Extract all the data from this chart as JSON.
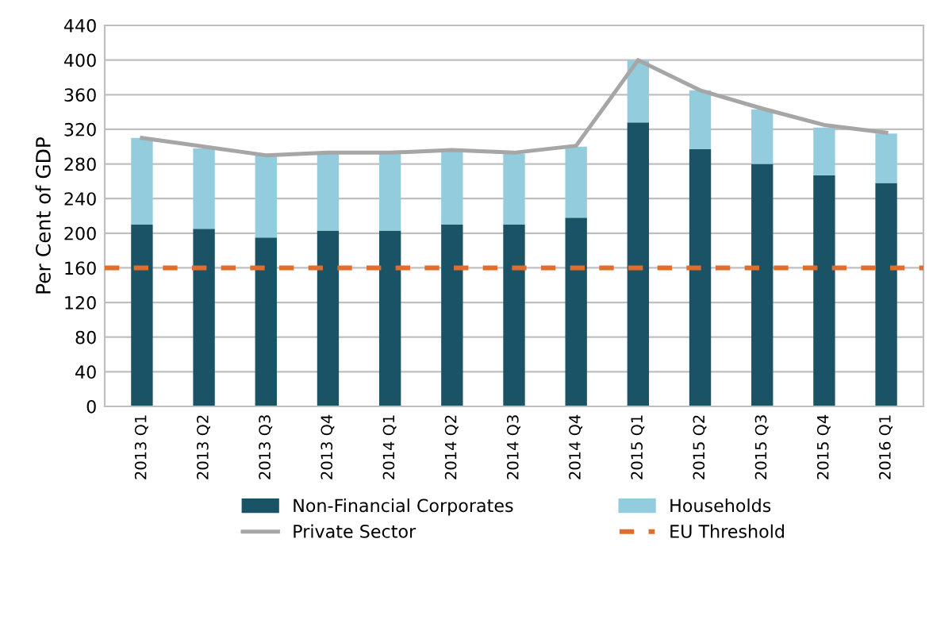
{
  "chart_data": {
    "type": "bar",
    "ylabel": "Per Cent of GDP",
    "stacked": true,
    "categories": [
      "2013 Q1",
      "2013 Q2",
      "2013 Q3",
      "2013 Q4",
      "2014 Q1",
      "2014 Q2",
      "2014 Q3",
      "2014 Q4",
      "2015 Q1",
      "2015 Q2",
      "2015 Q3",
      "2015 Q4",
      "2016 Q1"
    ],
    "series": [
      {
        "name": "Non-Financial Corporates",
        "color": "#1b5366",
        "values": [
          210,
          205,
          195,
          203,
          203,
          210,
          210,
          218,
          328,
          297,
          280,
          267,
          258
        ]
      },
      {
        "name": "Households",
        "color": "#93cddd",
        "values": [
          100,
          93,
          95,
          89,
          89,
          85,
          82,
          82,
          72,
          68,
          63,
          55,
          57
        ]
      },
      {
        "name": "Private Sector",
        "type": "line",
        "color": "#a6a6a6",
        "values": [
          310,
          300,
          290,
          293,
          293,
          296,
          293,
          301,
          400,
          365,
          344,
          325,
          316
        ]
      }
    ],
    "ref_lines": [
      {
        "axis": "y",
        "value": 160,
        "label": "EU Threshold",
        "color": "#e46c2a",
        "line_style": "dashed"
      }
    ],
    "ylim": [
      0,
      440
    ],
    "yticks": [
      0,
      40,
      80,
      120,
      160,
      200,
      240,
      280,
      320,
      360,
      400,
      440
    ],
    "grid": "y",
    "legend": "bottom"
  }
}
